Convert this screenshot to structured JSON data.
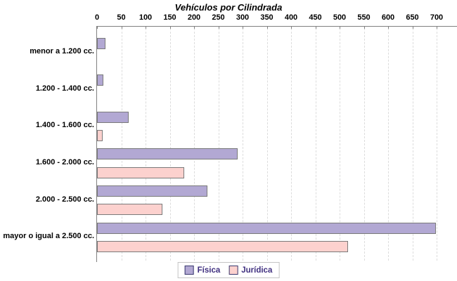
{
  "title": "Vehículos por Cilindrada",
  "colors": {
    "axis": "#808080",
    "gridline": "#dcdcdc",
    "bar_border": "#7a7a7a",
    "fisica_fill": "#b2a8d3",
    "juridica_fill": "#fcd1ce",
    "legend_text": "#3f2f7f",
    "legend_swatch_border": "#38386e",
    "background": "#ffffff"
  },
  "legend": {
    "items": [
      {
        "label": "Física",
        "color": "#b2a8d3"
      },
      {
        "label": "Jurídica",
        "color": "#fcd1ce"
      }
    ]
  },
  "chart_data": {
    "type": "bar",
    "orientation": "horizontal",
    "title": "Vehículos por Cilindrada",
    "categories": [
      "menor a 1.200 cc.",
      "1.200 - 1.400 cc.",
      "1.400 - 1.600 cc.",
      "1.600 - 2.000 cc.",
      "2.000 - 2.500 cc.",
      "mayor o igual a 2.500 cc."
    ],
    "series": [
      {
        "name": "Física",
        "color": "#b2a8d3",
        "values": [
          15,
          10,
          62,
          287,
          224,
          695
        ]
      },
      {
        "name": "Jurídica",
        "color": "#fcd1ce",
        "values": [
          0,
          0,
          9,
          177,
          132,
          515
        ]
      }
    ],
    "xlabel": "",
    "ylabel": "",
    "xlim": [
      0,
      700
    ],
    "x_ticks": [
      0,
      50,
      100,
      150,
      200,
      250,
      300,
      350,
      400,
      450,
      500,
      550,
      600,
      650,
      700
    ],
    "grid": "vertical-dashed",
    "legend_position": "bottom-center"
  }
}
